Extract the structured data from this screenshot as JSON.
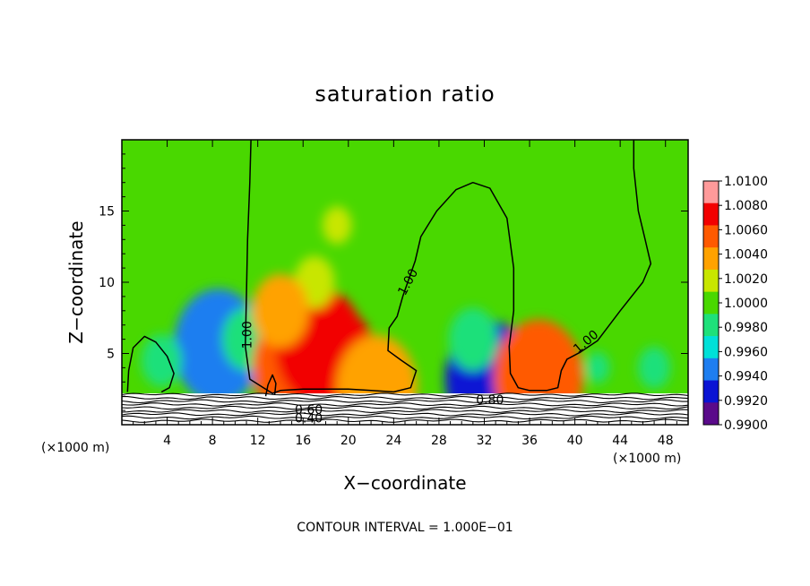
{
  "chart_data": {
    "type": "heatmap",
    "title": "saturation ratio",
    "xlabel": "X−coordinate",
    "ylabel": "Z−coordinate",
    "x_unit_left": "(×1000 m)",
    "x_unit_right": "(×1000 m)",
    "xlim": [
      0,
      50
    ],
    "ylim": [
      0,
      20
    ],
    "x_ticks": [
      4,
      8,
      12,
      16,
      20,
      24,
      28,
      32,
      36,
      40,
      44,
      48
    ],
    "x_tick_labels": [
      "4",
      "8",
      "12",
      "16",
      "20",
      "24",
      "28",
      "32",
      "36",
      "40",
      "44",
      "48"
    ],
    "y_ticks": [
      5,
      10,
      15
    ],
    "y_tick_labels": [
      "5",
      "10",
      "15"
    ],
    "colorbar": {
      "levels": [
        1.01,
        1.008,
        1.006,
        1.004,
        1.002,
        1.0,
        0.998,
        0.996,
        0.994,
        0.992,
        0.99
      ],
      "labels": [
        "1.0100",
        "1.0080",
        "1.0060",
        "1.0040",
        "1.0020",
        "1.0000",
        "0.9980",
        "0.9960",
        "0.9940",
        "0.9920",
        "0.9900"
      ],
      "colors": [
        "#ff9a9a",
        "#f20000",
        "#ff5a00",
        "#ffa200",
        "#c8e600",
        "#49d800",
        "#1ee07a",
        "#00e0d8",
        "#1e7ef0",
        "#0a14d4",
        "#5a0a8a"
      ]
    },
    "background_value": 1.0,
    "anomalies": [
      {
        "x": 8.5,
        "z": 5.5,
        "value": 0.9945
      },
      {
        "x": 3.5,
        "z": 4.5,
        "value": 0.9975
      },
      {
        "x": 11,
        "z": 6,
        "value": 0.997
      },
      {
        "x": 15.5,
        "z": 4,
        "value": 1.0065
      },
      {
        "x": 17.5,
        "z": 5.5,
        "value": 1.0085
      },
      {
        "x": 18.7,
        "z": 4.2,
        "value": 1.0075
      },
      {
        "x": 17,
        "z": 10,
        "value": 1.0025
      },
      {
        "x": 19,
        "z": 14,
        "value": 1.0018
      },
      {
        "x": 14,
        "z": 8,
        "value": 1.0035
      },
      {
        "x": 32.5,
        "z": 3.2,
        "value": 0.992
      },
      {
        "x": 31,
        "z": 6,
        "value": 0.997
      },
      {
        "x": 36.8,
        "z": 3.3,
        "value": 1.0065
      },
      {
        "x": 42,
        "z": 4,
        "value": 0.9985
      },
      {
        "x": 47,
        "z": 4,
        "value": 0.998
      },
      {
        "x": 22.5,
        "z": 2.6,
        "value": 1.005
      }
    ],
    "contours": [
      {
        "label": "1.00",
        "label_pos": [
          11.1,
          6.3
        ],
        "label_angle": -90,
        "points": [
          [
            11.4,
            20
          ],
          [
            11.3,
            17
          ],
          [
            11.1,
            13
          ],
          [
            11.0,
            9
          ],
          [
            10.9,
            5.5
          ],
          [
            11.3,
            3.2
          ],
          [
            12.5,
            2.6
          ],
          [
            13.3,
            2.2
          ],
          [
            14,
            2.4
          ],
          [
            16,
            2.5
          ],
          [
            20,
            2.5
          ],
          [
            22,
            2.4
          ],
          [
            24,
            2.3
          ],
          [
            25.5,
            2.6
          ],
          [
            26,
            3.8
          ],
          [
            24.7,
            4.5
          ],
          [
            23.5,
            5.2
          ],
          [
            23.6,
            6.8
          ],
          [
            24.3,
            7.6
          ],
          [
            24.8,
            9
          ],
          [
            25.9,
            11.5
          ],
          [
            26.4,
            13.2
          ],
          [
            27.8,
            15
          ],
          [
            29.5,
            16.5
          ],
          [
            31,
            17
          ],
          [
            32.5,
            16.6
          ],
          [
            34,
            14.5
          ],
          [
            34.6,
            11
          ],
          [
            34.6,
            8
          ],
          [
            34.2,
            5.5
          ],
          [
            34.3,
            3.6
          ],
          [
            35,
            2.6
          ],
          [
            36,
            2.4
          ],
          [
            37.5,
            2.4
          ],
          [
            38.5,
            2.6
          ],
          [
            38.8,
            3.8
          ],
          [
            39.3,
            4.6
          ],
          [
            40.5,
            5.1
          ],
          [
            42,
            5.9
          ],
          [
            44,
            8
          ],
          [
            46,
            10
          ],
          [
            46.7,
            11.3
          ],
          [
            46.2,
            13
          ],
          [
            45.6,
            15
          ],
          [
            45.2,
            18
          ],
          [
            45.2,
            20
          ]
        ]
      },
      {
        "label": "",
        "points": [
          [
            0.5,
            2.3
          ],
          [
            0.6,
            3.8
          ],
          [
            1.0,
            5.4
          ],
          [
            2.0,
            6.2
          ],
          [
            3.0,
            5.8
          ],
          [
            4.0,
            4.8
          ],
          [
            4.6,
            3.6
          ],
          [
            4.2,
            2.6
          ],
          [
            3.5,
            2.3
          ]
        ]
      },
      {
        "label": "",
        "points": [
          [
            12.7,
            2.0
          ],
          [
            12.9,
            2.8
          ],
          [
            13.3,
            3.5
          ],
          [
            13.6,
            2.9
          ],
          [
            13.5,
            2.1
          ]
        ]
      }
    ],
    "inline_labels": [
      {
        "text": "1.00",
        "pos": [
          25.3,
          10.0
        ],
        "angle": -62
      },
      {
        "text": "1.00",
        "pos": [
          41.0,
          5.8
        ],
        "angle": -40
      },
      {
        "text": "0.80",
        "pos": [
          32.5,
          1.7
        ],
        "angle": 0
      },
      {
        "text": "0.60",
        "pos": [
          16.5,
          1.0
        ],
        "angle": 0
      },
      {
        "text": "0.40",
        "pos": [
          16.5,
          0.4
        ],
        "angle": 0
      }
    ],
    "surface_layer_top": 2.2,
    "surface_contour_levels": [
      0.9,
      0.8,
      0.7,
      0.6,
      0.5,
      0.4,
      0.3,
      0.2,
      0.1
    ]
  },
  "footnote": "CONTOUR INTERVAL =  1.000E−01"
}
